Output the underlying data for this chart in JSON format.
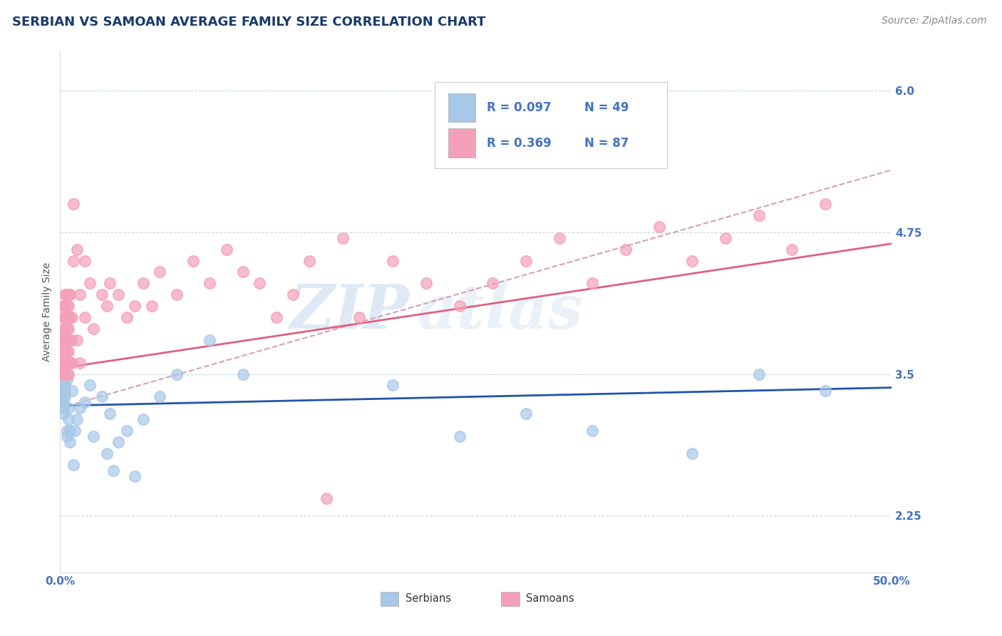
{
  "title": "SERBIAN VS SAMOAN AVERAGE FAMILY SIZE CORRELATION CHART",
  "source_text": "Source: ZipAtlas.com",
  "ylabel": "Average Family Size",
  "xlim": [
    0.0,
    0.5
  ],
  "ylim": [
    1.75,
    6.35
  ],
  "yticks": [
    2.25,
    3.5,
    4.75,
    6.0
  ],
  "xtick_labels": [
    "0.0%",
    "50.0%"
  ],
  "title_color": "#1a3a6b",
  "axis_color": "#4472c4",
  "watermark_zip": "ZIP",
  "watermark_atlas": "atlas",
  "legend_R1": "R = 0.097",
  "legend_N1": "N = 49",
  "legend_R2": "R = 0.369",
  "legend_N2": "N = 87",
  "serbian_color": "#a8c8e8",
  "samoan_color": "#f4a0b8",
  "serbian_line_color": "#2255aa",
  "samoan_line_color": "#e06080",
  "trendline_dashed_color": "#d8a0b0",
  "background_color": "#ffffff",
  "grid_color": "#c8d8e8",
  "title_fontsize": 13,
  "label_fontsize": 10,
  "tick_fontsize": 11,
  "source_fontsize": 10,
  "serbian_points": [
    [
      0.001,
      3.4
    ],
    [
      0.001,
      3.35
    ],
    [
      0.001,
      3.3
    ],
    [
      0.001,
      3.25
    ],
    [
      0.002,
      3.5
    ],
    [
      0.002,
      3.45
    ],
    [
      0.002,
      3.4
    ],
    [
      0.002,
      3.35
    ],
    [
      0.002,
      3.3
    ],
    [
      0.002,
      3.25
    ],
    [
      0.002,
      3.2
    ],
    [
      0.002,
      3.15
    ],
    [
      0.003,
      3.4
    ],
    [
      0.003,
      3.35
    ],
    [
      0.003,
      3.3
    ],
    [
      0.004,
      3.45
    ],
    [
      0.004,
      3.0
    ],
    [
      0.004,
      2.95
    ],
    [
      0.005,
      3.2
    ],
    [
      0.005,
      3.1
    ],
    [
      0.006,
      3.0
    ],
    [
      0.006,
      2.9
    ],
    [
      0.007,
      3.35
    ],
    [
      0.008,
      2.7
    ],
    [
      0.009,
      3.0
    ],
    [
      0.01,
      3.1
    ],
    [
      0.012,
      3.2
    ],
    [
      0.015,
      3.25
    ],
    [
      0.018,
      3.4
    ],
    [
      0.02,
      2.95
    ],
    [
      0.025,
      3.3
    ],
    [
      0.028,
      2.8
    ],
    [
      0.03,
      3.15
    ],
    [
      0.032,
      2.65
    ],
    [
      0.035,
      2.9
    ],
    [
      0.04,
      3.0
    ],
    [
      0.045,
      2.6
    ],
    [
      0.05,
      3.1
    ],
    [
      0.06,
      3.3
    ],
    [
      0.07,
      3.5
    ],
    [
      0.09,
      3.8
    ],
    [
      0.11,
      3.5
    ],
    [
      0.2,
      3.4
    ],
    [
      0.24,
      2.95
    ],
    [
      0.28,
      3.15
    ],
    [
      0.32,
      3.0
    ],
    [
      0.38,
      2.8
    ],
    [
      0.42,
      3.5
    ],
    [
      0.46,
      3.35
    ]
  ],
  "samoan_points": [
    [
      0.001,
      3.5
    ],
    [
      0.001,
      3.6
    ],
    [
      0.001,
      3.7
    ],
    [
      0.001,
      3.8
    ],
    [
      0.002,
      3.5
    ],
    [
      0.002,
      3.6
    ],
    [
      0.002,
      3.7
    ],
    [
      0.002,
      3.8
    ],
    [
      0.002,
      3.9
    ],
    [
      0.002,
      4.0
    ],
    [
      0.002,
      4.1
    ],
    [
      0.003,
      3.5
    ],
    [
      0.003,
      3.6
    ],
    [
      0.003,
      3.7
    ],
    [
      0.003,
      3.8
    ],
    [
      0.003,
      3.9
    ],
    [
      0.003,
      4.0
    ],
    [
      0.003,
      4.1
    ],
    [
      0.003,
      4.2
    ],
    [
      0.004,
      3.5
    ],
    [
      0.004,
      3.6
    ],
    [
      0.004,
      3.7
    ],
    [
      0.004,
      3.8
    ],
    [
      0.004,
      3.9
    ],
    [
      0.004,
      4.0
    ],
    [
      0.004,
      4.1
    ],
    [
      0.004,
      4.2
    ],
    [
      0.005,
      3.5
    ],
    [
      0.005,
      3.6
    ],
    [
      0.005,
      3.7
    ],
    [
      0.005,
      3.8
    ],
    [
      0.005,
      3.9
    ],
    [
      0.005,
      4.0
    ],
    [
      0.005,
      4.1
    ],
    [
      0.005,
      4.2
    ],
    [
      0.006,
      3.6
    ],
    [
      0.006,
      3.8
    ],
    [
      0.006,
      4.0
    ],
    [
      0.006,
      4.2
    ],
    [
      0.007,
      3.6
    ],
    [
      0.007,
      3.8
    ],
    [
      0.007,
      4.0
    ],
    [
      0.008,
      5.0
    ],
    [
      0.008,
      4.5
    ],
    [
      0.01,
      4.6
    ],
    [
      0.01,
      3.8
    ],
    [
      0.012,
      4.2
    ],
    [
      0.012,
      3.6
    ],
    [
      0.015,
      4.5
    ],
    [
      0.015,
      4.0
    ],
    [
      0.018,
      4.3
    ],
    [
      0.02,
      3.9
    ],
    [
      0.025,
      4.2
    ],
    [
      0.028,
      4.1
    ],
    [
      0.03,
      4.3
    ],
    [
      0.035,
      4.2
    ],
    [
      0.04,
      4.0
    ],
    [
      0.045,
      4.1
    ],
    [
      0.05,
      4.3
    ],
    [
      0.055,
      4.1
    ],
    [
      0.06,
      4.4
    ],
    [
      0.07,
      4.2
    ],
    [
      0.08,
      4.5
    ],
    [
      0.09,
      4.3
    ],
    [
      0.1,
      4.6
    ],
    [
      0.11,
      4.4
    ],
    [
      0.12,
      4.3
    ],
    [
      0.13,
      4.0
    ],
    [
      0.14,
      4.2
    ],
    [
      0.15,
      4.5
    ],
    [
      0.16,
      2.4
    ],
    [
      0.17,
      4.7
    ],
    [
      0.18,
      4.0
    ],
    [
      0.2,
      4.5
    ],
    [
      0.22,
      4.3
    ],
    [
      0.24,
      4.1
    ],
    [
      0.26,
      4.3
    ],
    [
      0.28,
      4.5
    ],
    [
      0.3,
      4.7
    ],
    [
      0.32,
      4.3
    ],
    [
      0.34,
      4.6
    ],
    [
      0.36,
      4.8
    ],
    [
      0.38,
      4.5
    ],
    [
      0.4,
      4.7
    ],
    [
      0.42,
      4.9
    ],
    [
      0.44,
      4.6
    ],
    [
      0.46,
      5.0
    ]
  ],
  "serbian_trendline": [
    3.22,
    3.38
  ],
  "samoan_trendline": [
    3.55,
    4.65
  ],
  "dashed_trendline": [
    3.2,
    5.3
  ]
}
